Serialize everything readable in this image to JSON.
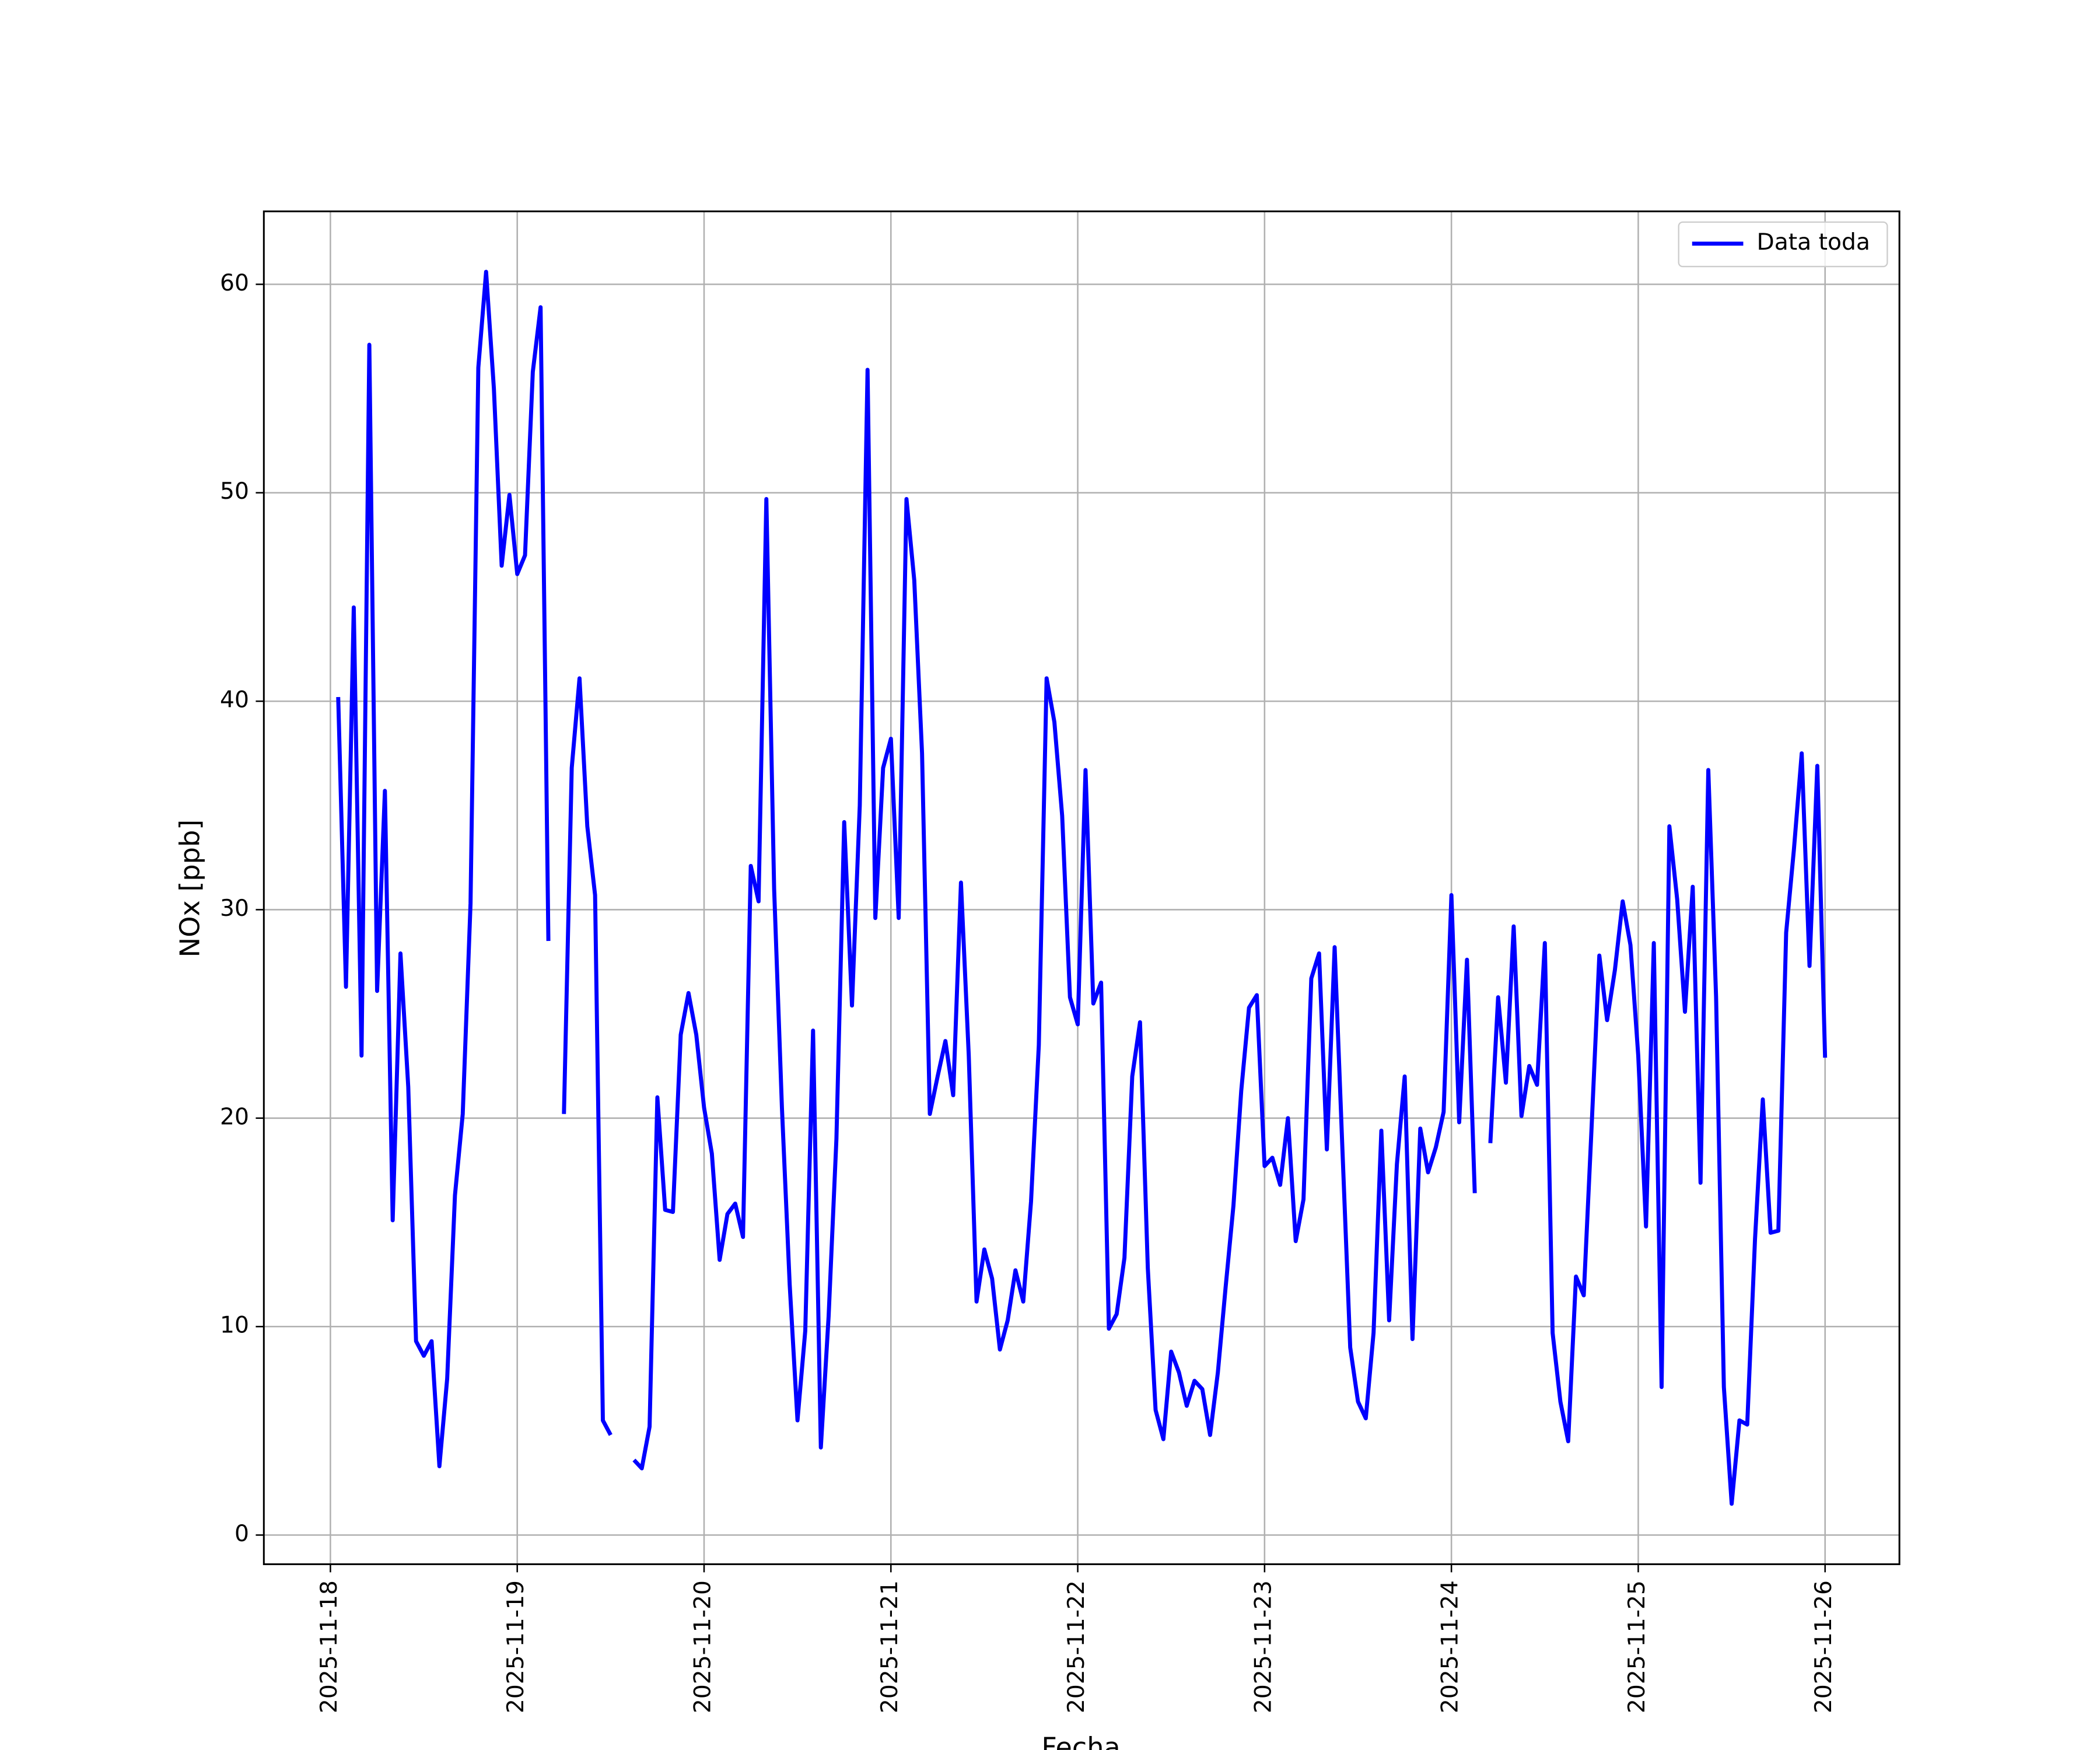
{
  "chart_data": {
    "type": "line",
    "xlabel": "Fecha",
    "ylabel": "NOx [ppb]",
    "x": [
      "2025-11-18 01:00",
      "2025-11-18 02:00",
      "2025-11-18 03:00",
      "2025-11-18 04:00",
      "2025-11-18 05:00",
      "2025-11-18 06:00",
      "2025-11-18 07:00",
      "2025-11-18 08:00",
      "2025-11-18 09:00",
      "2025-11-18 10:00",
      "2025-11-18 11:00",
      "2025-11-18 12:00",
      "2025-11-18 13:00",
      "2025-11-18 14:00",
      "2025-11-18 15:00",
      "2025-11-18 16:00",
      "2025-11-18 17:00",
      "2025-11-18 18:00",
      "2025-11-18 19:00",
      "2025-11-18 20:00",
      "2025-11-18 21:00",
      "2025-11-18 22:00",
      "2025-11-18 23:00",
      "2025-11-19 00:00",
      "2025-11-19 01:00",
      "2025-11-19 02:00",
      "2025-11-19 03:00",
      "2025-11-19 04:00",
      "2025-11-19 05:00",
      "2025-11-19 06:00",
      "2025-11-19 07:00",
      "2025-11-19 08:00",
      "2025-11-19 09:00",
      "2025-11-19 10:00",
      "2025-11-19 11:00",
      "2025-11-19 12:00",
      "2025-11-19 13:00",
      "2025-11-19 14:00",
      "2025-11-19 15:00",
      "2025-11-19 16:00",
      "2025-11-19 17:00",
      "2025-11-19 18:00",
      "2025-11-19 19:00",
      "2025-11-19 20:00",
      "2025-11-19 21:00",
      "2025-11-19 22:00",
      "2025-11-19 23:00",
      "2025-11-20 00:00",
      "2025-11-20 01:00",
      "2025-11-20 02:00",
      "2025-11-20 03:00",
      "2025-11-20 04:00",
      "2025-11-20 05:00",
      "2025-11-20 06:00",
      "2025-11-20 07:00",
      "2025-11-20 08:00",
      "2025-11-20 09:00",
      "2025-11-20 10:00",
      "2025-11-20 11:00",
      "2025-11-20 12:00",
      "2025-11-20 13:00",
      "2025-11-20 14:00",
      "2025-11-20 15:00",
      "2025-11-20 16:00",
      "2025-11-20 17:00",
      "2025-11-20 18:00",
      "2025-11-20 19:00",
      "2025-11-20 20:00",
      "2025-11-20 21:00",
      "2025-11-20 22:00",
      "2025-11-20 23:00",
      "2025-11-21 00:00",
      "2025-11-21 01:00",
      "2025-11-21 02:00",
      "2025-11-21 03:00",
      "2025-11-21 04:00",
      "2025-11-21 05:00",
      "2025-11-21 06:00",
      "2025-11-21 07:00",
      "2025-11-21 08:00",
      "2025-11-21 09:00",
      "2025-11-21 10:00",
      "2025-11-21 11:00",
      "2025-11-21 12:00",
      "2025-11-21 13:00",
      "2025-11-21 14:00",
      "2025-11-21 15:00",
      "2025-11-21 16:00",
      "2025-11-21 17:00",
      "2025-11-21 18:00",
      "2025-11-21 19:00",
      "2025-11-21 20:00",
      "2025-11-21 21:00",
      "2025-11-21 22:00",
      "2025-11-21 23:00",
      "2025-11-22 00:00",
      "2025-11-22 01:00",
      "2025-11-22 02:00",
      "2025-11-22 03:00",
      "2025-11-22 04:00",
      "2025-11-22 05:00",
      "2025-11-22 06:00",
      "2025-11-22 07:00",
      "2025-11-22 08:00",
      "2025-11-22 09:00",
      "2025-11-22 10:00",
      "2025-11-22 11:00",
      "2025-11-22 12:00",
      "2025-11-22 13:00",
      "2025-11-22 14:00",
      "2025-11-22 15:00",
      "2025-11-22 16:00",
      "2025-11-22 17:00",
      "2025-11-22 18:00",
      "2025-11-22 19:00",
      "2025-11-22 20:00",
      "2025-11-22 21:00",
      "2025-11-22 22:00",
      "2025-11-22 23:00",
      "2025-11-23 00:00",
      "2025-11-23 01:00",
      "2025-11-23 02:00",
      "2025-11-23 03:00",
      "2025-11-23 04:00",
      "2025-11-23 05:00",
      "2025-11-23 06:00",
      "2025-11-23 07:00",
      "2025-11-23 08:00",
      "2025-11-23 09:00",
      "2025-11-23 10:00",
      "2025-11-23 11:00",
      "2025-11-23 12:00",
      "2025-11-23 13:00",
      "2025-11-23 14:00",
      "2025-11-23 15:00",
      "2025-11-23 16:00",
      "2025-11-23 17:00",
      "2025-11-23 18:00",
      "2025-11-23 19:00",
      "2025-11-23 20:00",
      "2025-11-23 21:00",
      "2025-11-23 22:00",
      "2025-11-23 23:00",
      "2025-11-24 00:00",
      "2025-11-24 01:00",
      "2025-11-24 02:00",
      "2025-11-24 03:00",
      "2025-11-24 04:00",
      "2025-11-24 05:00",
      "2025-11-24 06:00",
      "2025-11-24 07:00",
      "2025-11-24 08:00",
      "2025-11-24 09:00",
      "2025-11-24 10:00",
      "2025-11-24 11:00",
      "2025-11-24 12:00",
      "2025-11-24 13:00",
      "2025-11-24 14:00",
      "2025-11-24 15:00",
      "2025-11-24 16:00",
      "2025-11-24 17:00",
      "2025-11-24 18:00",
      "2025-11-24 19:00",
      "2025-11-24 20:00",
      "2025-11-24 21:00",
      "2025-11-24 22:00",
      "2025-11-24 23:00",
      "2025-11-25 00:00",
      "2025-11-25 01:00",
      "2025-11-25 02:00",
      "2025-11-25 03:00",
      "2025-11-25 04:00",
      "2025-11-25 05:00",
      "2025-11-25 06:00",
      "2025-11-25 07:00",
      "2025-11-25 08:00",
      "2025-11-25 09:00",
      "2025-11-25 10:00",
      "2025-11-25 11:00",
      "2025-11-25 12:00",
      "2025-11-25 13:00",
      "2025-11-25 14:00",
      "2025-11-25 15:00",
      "2025-11-25 16:00",
      "2025-11-25 17:00",
      "2025-11-25 18:00",
      "2025-11-25 19:00",
      "2025-11-25 20:00",
      "2025-11-25 21:00",
      "2025-11-25 22:00",
      "2025-11-25 23:00",
      "2025-11-26 00:00"
    ],
    "series": [
      {
        "name": "Data toda",
        "color": "#0000ff",
        "values": [
          40.2,
          26.3,
          44.5,
          23.0,
          57.1,
          26.1,
          35.7,
          15.1,
          27.9,
          21.5,
          9.3,
          8.6,
          9.3,
          3.3,
          7.5,
          16.3,
          20.2,
          30.3,
          56.0,
          60.6,
          55.0,
          46.5,
          49.9,
          46.1,
          47.0,
          55.8,
          58.9,
          28.5,
          null,
          20.2,
          36.8,
          41.1,
          34.0,
          30.7,
          5.5,
          4.8,
          null,
          null,
          3.6,
          3.2,
          5.2,
          21.0,
          15.6,
          15.5,
          24.0,
          26.0,
          24.0,
          20.5,
          18.3,
          13.2,
          15.4,
          15.9,
          14.3,
          32.1,
          30.4,
          49.7,
          31.0,
          20.5,
          12.0,
          5.5,
          9.8,
          24.2,
          4.2,
          10.5,
          19.0,
          34.2,
          25.4,
          35.0,
          55.9,
          29.6,
          36.8,
          38.2,
          29.6,
          49.7,
          45.8,
          37.5,
          20.2,
          22.0,
          23.7,
          21.1,
          31.3,
          23.0,
          11.2,
          13.7,
          12.3,
          8.9,
          10.3,
          12.7,
          11.2,
          16.0,
          23.5,
          41.1,
          39.0,
          34.5,
          25.8,
          24.5,
          36.7,
          25.5,
          26.5,
          9.9,
          10.6,
          13.3,
          22.0,
          24.6,
          12.8,
          6.0,
          4.6,
          8.8,
          7.8,
          6.2,
          7.4,
          7.0,
          4.8,
          7.8,
          11.9,
          15.8,
          21.3,
          25.3,
          25.9,
          17.7,
          18.1,
          16.8,
          20.0,
          14.1,
          16.1,
          26.7,
          27.9,
          18.5,
          28.2,
          18.5,
          9.0,
          6.4,
          5.6,
          9.7,
          19.4,
          10.3,
          17.8,
          22.0,
          9.4,
          19.5,
          17.4,
          18.6,
          20.3,
          30.7,
          19.8,
          27.6,
          16.4,
          null,
          18.8,
          25.8,
          21.7,
          29.2,
          20.1,
          22.5,
          21.6,
          28.4,
          9.7,
          6.4,
          4.5,
          12.4,
          11.5,
          19.5,
          27.8,
          24.7,
          27.1,
          30.4,
          28.3,
          23.0,
          14.8,
          28.4,
          7.1,
          34.0,
          30.5,
          25.1,
          31.1,
          16.9,
          36.7,
          25.8,
          7.1,
          1.5,
          5.5,
          5.3,
          14.2,
          20.9,
          14.5,
          14.6,
          28.9,
          32.9,
          37.5,
          27.3,
          36.9,
          22.9
        ]
      }
    ],
    "xlim": [
      "2025-11-17 15:27",
      "2025-11-26 09:33"
    ],
    "xticks": [
      "2025-11-18",
      "2025-11-19",
      "2025-11-20",
      "2025-11-21",
      "2025-11-22",
      "2025-11-23",
      "2025-11-24",
      "2025-11-25",
      "2025-11-26"
    ],
    "ylim": [
      -1.4,
      63.5
    ],
    "yticks": [
      0,
      10,
      20,
      30,
      40,
      50,
      60
    ],
    "grid": true,
    "legend": "upper right"
  }
}
